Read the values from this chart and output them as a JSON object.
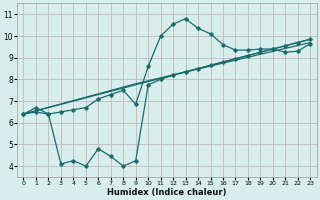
{
  "title": "",
  "xlabel": "Humidex (Indice chaleur)",
  "xlim": [
    -0.5,
    23.5
  ],
  "ylim": [
    3.5,
    11.5
  ],
  "yticks": [
    4,
    5,
    6,
    7,
    8,
    9,
    10,
    11
  ],
  "xticks": [
    0,
    1,
    2,
    3,
    4,
    5,
    6,
    7,
    8,
    9,
    10,
    11,
    12,
    13,
    14,
    15,
    16,
    17,
    18,
    19,
    20,
    21,
    22,
    23
  ],
  "bg_color": "#d8eeec",
  "grid_color": "#c4b8b8",
  "line_color": "#1a6b6b",
  "line1_x": [
    0,
    1,
    2,
    3,
    4,
    5,
    6,
    7,
    8,
    9,
    10,
    11,
    12,
    13,
    14,
    15,
    16,
    17,
    18,
    19,
    20,
    21,
    22,
    23
  ],
  "line1_y": [
    6.4,
    6.7,
    6.4,
    6.5,
    6.6,
    6.7,
    7.1,
    7.3,
    7.5,
    6.85,
    8.6,
    10.0,
    10.55,
    10.8,
    10.35,
    10.1,
    9.6,
    9.35,
    9.35,
    9.4,
    9.4,
    9.25,
    9.3,
    9.65
  ],
  "line2_x": [
    0,
    9,
    23
  ],
  "line2_y": [
    6.4,
    7.8,
    9.7
  ],
  "line3_x": [
    0,
    9,
    23
  ],
  "line3_y": [
    6.4,
    7.75,
    9.85
  ],
  "line4_x": [
    0,
    1,
    2,
    3,
    4,
    5,
    6,
    7,
    8,
    9,
    10,
    11,
    12,
    13,
    14,
    15,
    16,
    17,
    18,
    19,
    20,
    21,
    22,
    23
  ],
  "line4_y": [
    6.4,
    6.5,
    6.4,
    4.1,
    4.25,
    4.0,
    4.8,
    4.45,
    4.0,
    4.25,
    7.75,
    8.0,
    8.2,
    8.35,
    8.5,
    8.65,
    8.8,
    8.95,
    9.1,
    9.25,
    9.4,
    9.55,
    9.7,
    9.85
  ]
}
